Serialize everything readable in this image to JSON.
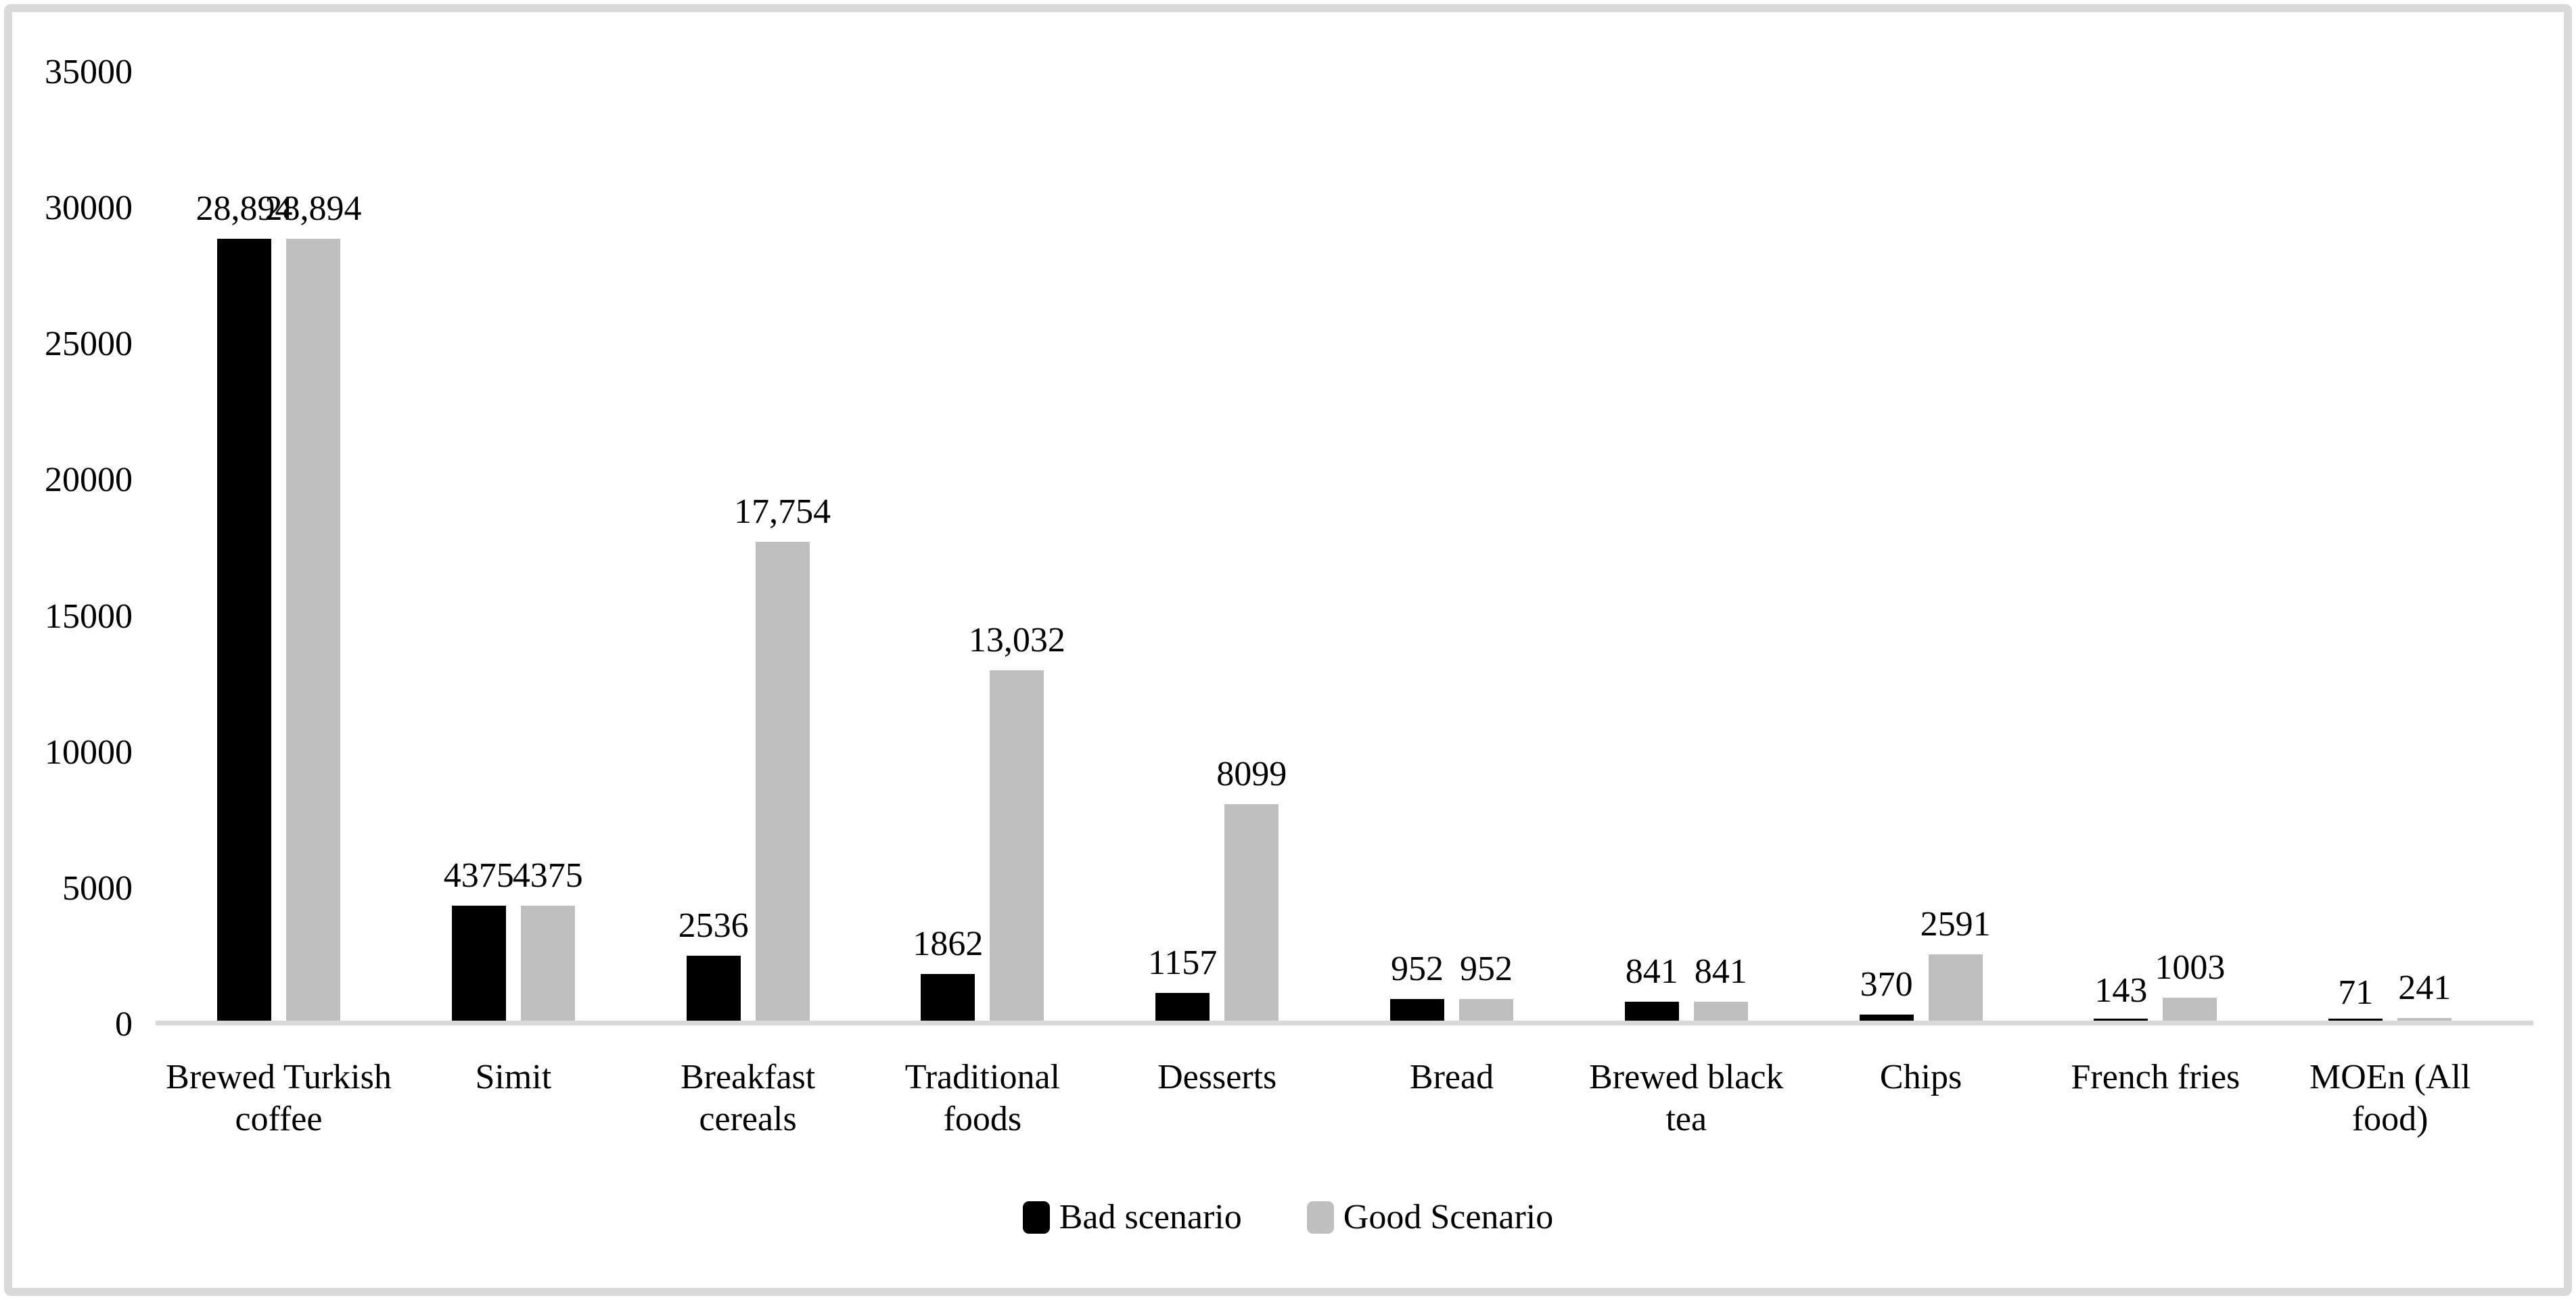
{
  "figure": {
    "background": "#ffffff",
    "border_color": "#dadada",
    "axis_line_color": "#d9d9d9"
  },
  "chart_data": {
    "type": "bar",
    "title": "",
    "xlabel": "",
    "ylabel": "",
    "categories": [
      "Brewed Turkish coffee",
      "Simit",
      "Breakfast cereals",
      "Traditional foods",
      "Desserts",
      "Bread",
      "Brewed black tea",
      "Chips",
      "French fries",
      "MOEn (All food)"
    ],
    "series": [
      {
        "name": "Bad scenario",
        "color": "#000000",
        "values": [
          28894,
          4375,
          2536,
          1862,
          1157,
          952,
          841,
          370,
          143,
          71
        ],
        "labels": [
          "28,894",
          "4375",
          "2536",
          "1862",
          "1157",
          "952",
          "841",
          "370",
          "143",
          "71"
        ]
      },
      {
        "name": "Good Scenario",
        "color": "#bfbfbf",
        "values": [
          28894,
          4375,
          17754,
          13032,
          8099,
          952,
          841,
          2591,
          1003,
          241
        ],
        "labels": [
          "28,894",
          "4375",
          "17,754",
          "13,032",
          "8099",
          "952",
          "841",
          "2591",
          "1003",
          "241"
        ]
      }
    ],
    "y_axis": {
      "min": 0,
      "max": 35000,
      "step": 5000,
      "tick_labels": [
        "0",
        "5000",
        "10000",
        "15000",
        "20000",
        "25000",
        "30000",
        "35000"
      ]
    },
    "ylim": [
      0,
      35000
    ],
    "grid": "off",
    "legend_position": "bottom"
  },
  "legend": {
    "items": [
      {
        "label": "Bad scenario",
        "color": "#000000"
      },
      {
        "label": "Good Scenario",
        "color": "#bfbfbf"
      }
    ]
  }
}
